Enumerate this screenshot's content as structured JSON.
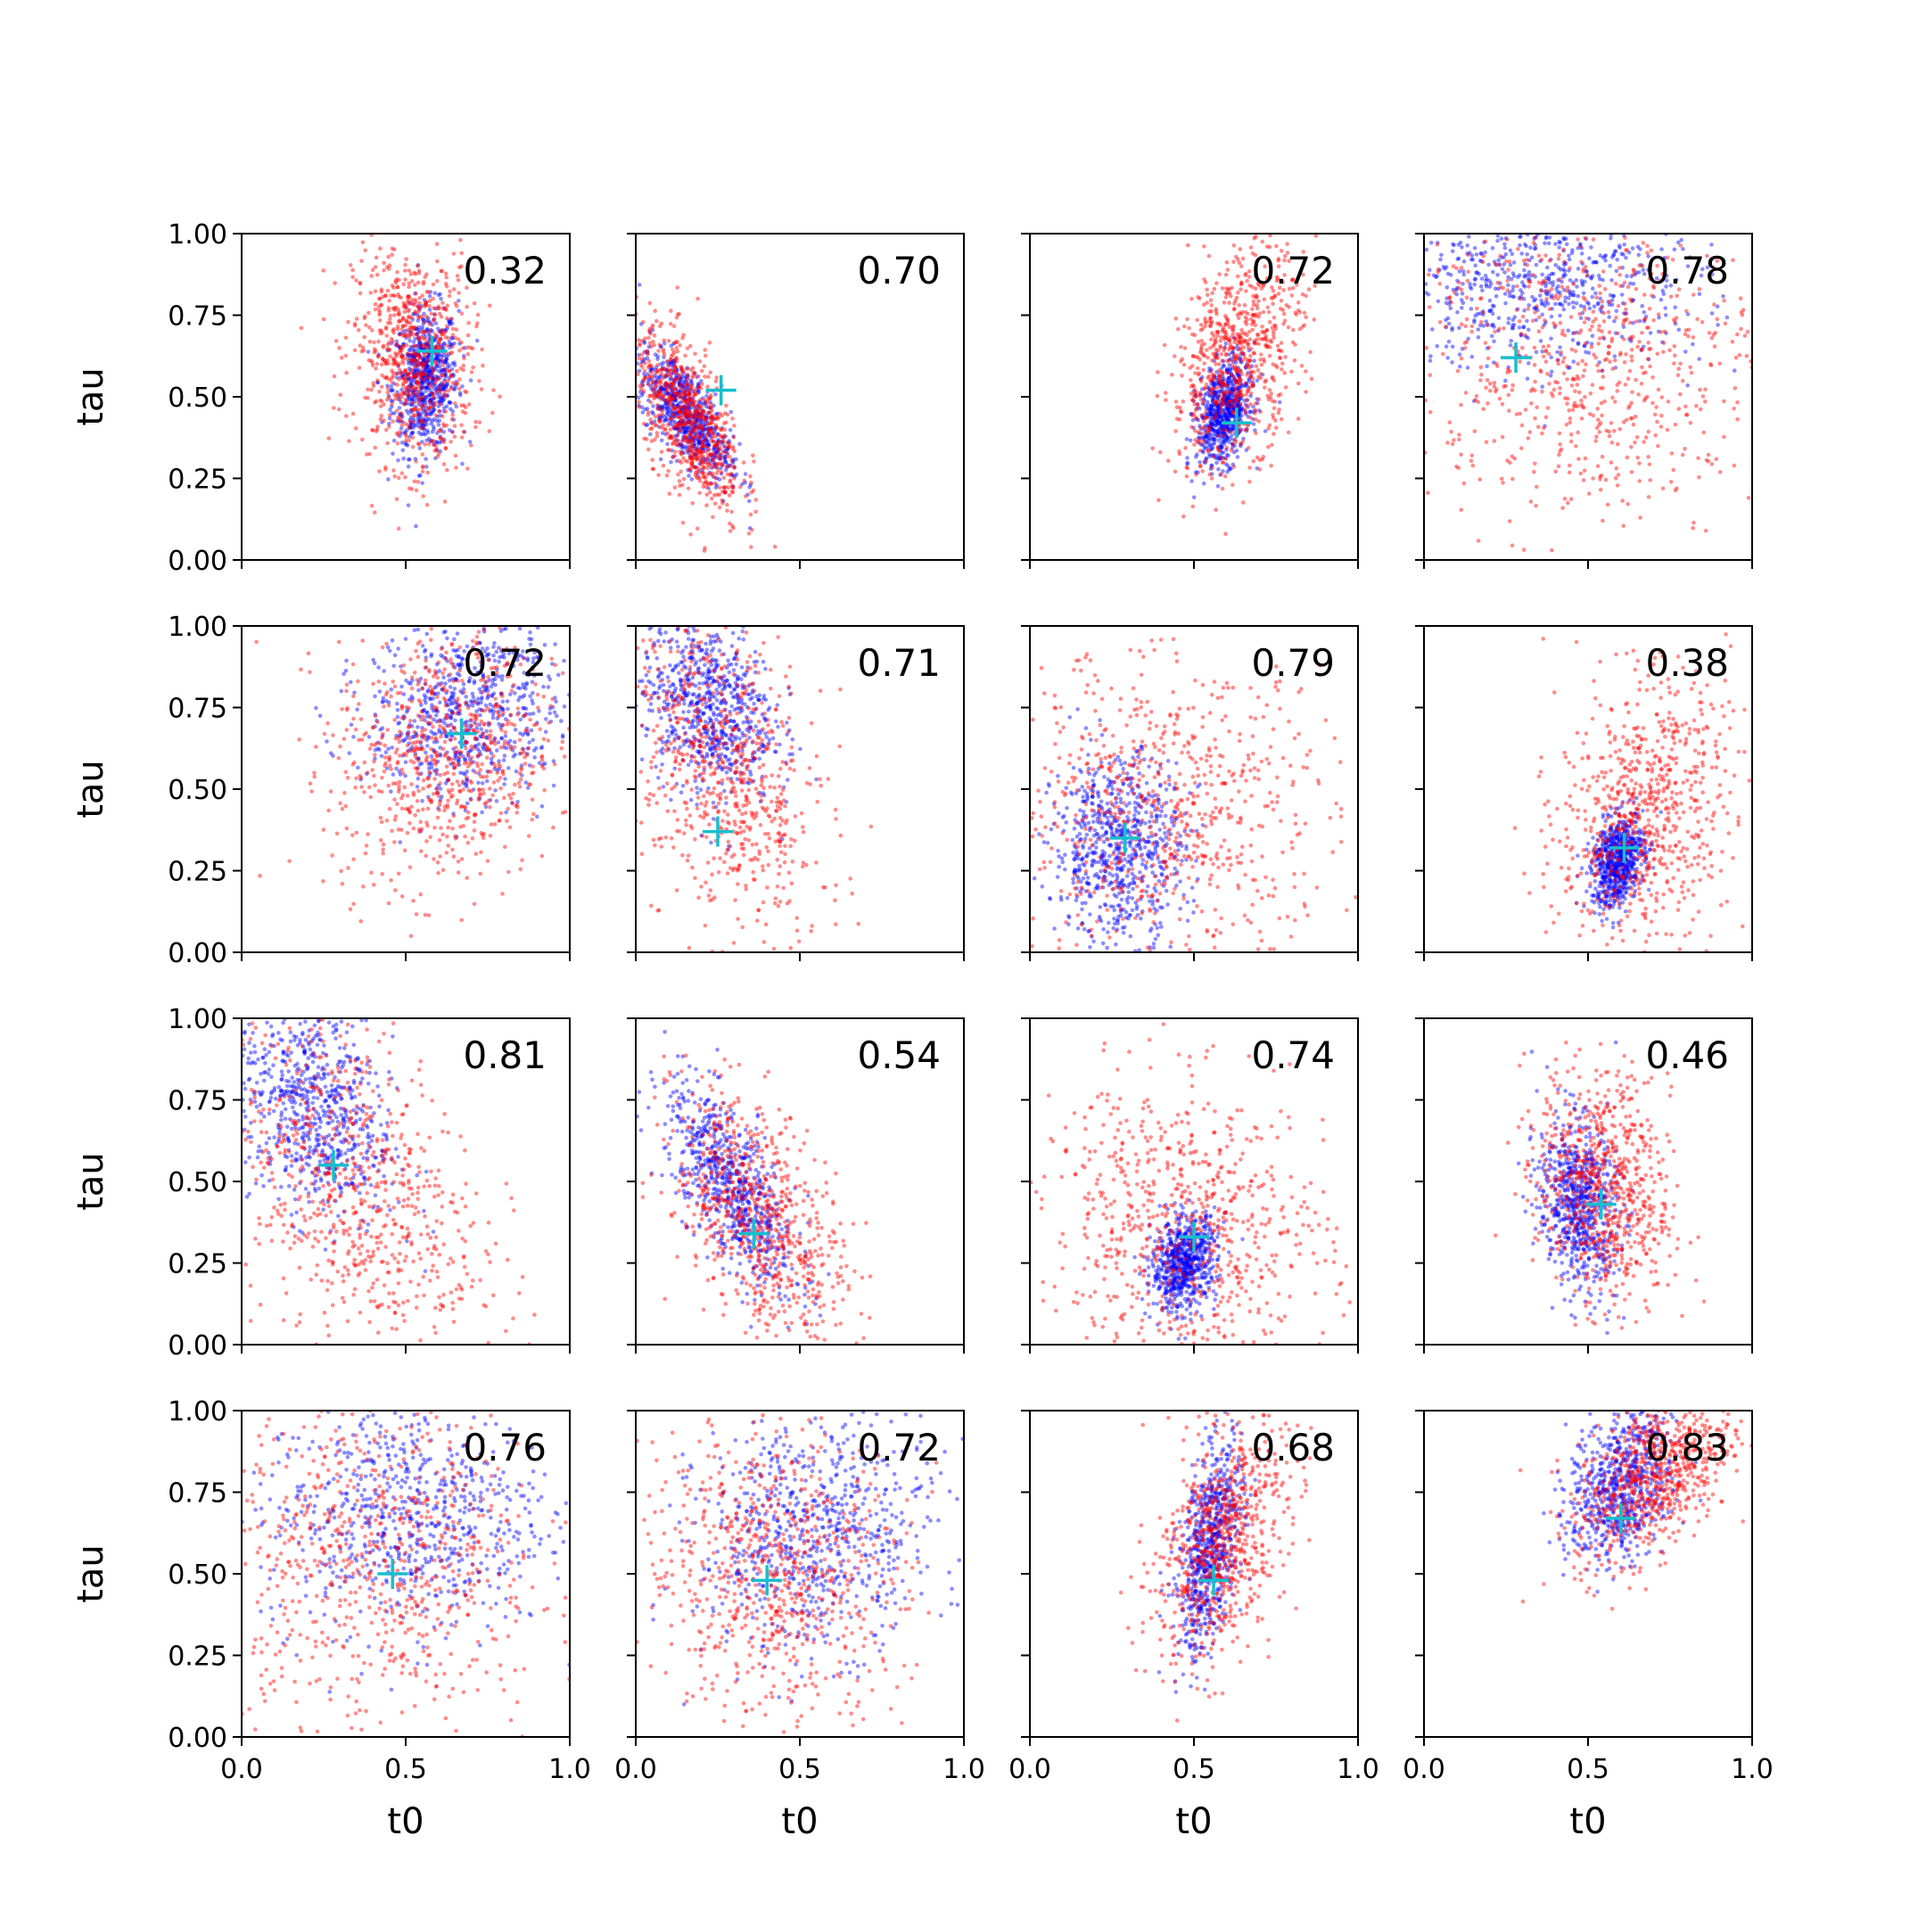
{
  "chart_data": {
    "type": "scatter",
    "layout": "4x4 grid of scatter panels",
    "xlabel": "t0",
    "ylabel": "tau",
    "xlim": [
      0,
      1
    ],
    "ylim": [
      0,
      1
    ],
    "xticks": [
      0.0,
      0.5,
      1.0
    ],
    "xtick_labels": [
      "0.0",
      "0.5",
      "1.0"
    ],
    "yticks": [
      0.0,
      0.25,
      0.5,
      0.75,
      1.0
    ],
    "ytick_labels": [
      "0.00",
      "0.25",
      "0.50",
      "0.75",
      "1.00"
    ],
    "series_colors": {
      "blue": "#0000ff",
      "red": "#ff0000",
      "marker": "#17becf"
    },
    "panels": [
      {
        "value_label": "0.32",
        "marker": [
          0.58,
          0.64
        ],
        "blue": {
          "mx": 0.56,
          "my": 0.55,
          "sx": 0.05,
          "sy": 0.11,
          "rho": 0.1
        },
        "red": {
          "mx": 0.52,
          "my": 0.62,
          "sx": 0.09,
          "sy": 0.17,
          "rho": -0.1
        }
      },
      {
        "value_label": "0.70",
        "marker": [
          0.26,
          0.52
        ],
        "blue": {
          "mx": 0.15,
          "my": 0.45,
          "sx": 0.07,
          "sy": 0.1,
          "rho": -0.7
        },
        "red": {
          "mx": 0.16,
          "my": 0.43,
          "sx": 0.08,
          "sy": 0.14,
          "rho": -0.6
        }
      },
      {
        "value_label": "0.72",
        "marker": [
          0.63,
          0.42
        ],
        "blue": {
          "mx": 0.59,
          "my": 0.45,
          "sx": 0.04,
          "sy": 0.08,
          "rho": 0.3
        },
        "red": {
          "mx": 0.63,
          "my": 0.62,
          "sx": 0.1,
          "sy": 0.17,
          "rho": 0.4
        }
      },
      {
        "value_label": "0.78",
        "marker": [
          0.28,
          0.62
        ],
        "blue": {
          "mx": 0.35,
          "my": 0.85,
          "sx": 0.25,
          "sy": 0.13,
          "rho": 0.0
        },
        "red": {
          "mx": 0.5,
          "my": 0.62,
          "sx": 0.28,
          "sy": 0.25,
          "rho": -0.1
        }
      },
      {
        "value_label": "0.72",
        "marker": [
          0.67,
          0.67
        ],
        "blue": {
          "mx": 0.68,
          "my": 0.74,
          "sx": 0.15,
          "sy": 0.14,
          "rho": 0.1
        },
        "red": {
          "mx": 0.62,
          "my": 0.6,
          "sx": 0.17,
          "sy": 0.2,
          "rho": 0.1
        }
      },
      {
        "value_label": "0.71",
        "marker": [
          0.25,
          0.37
        ],
        "blue": {
          "mx": 0.22,
          "my": 0.76,
          "sx": 0.1,
          "sy": 0.14,
          "rho": -0.2
        },
        "red": {
          "mx": 0.27,
          "my": 0.55,
          "sx": 0.15,
          "sy": 0.26,
          "rho": -0.4
        }
      },
      {
        "value_label": "0.79",
        "marker": [
          0.29,
          0.35
        ],
        "blue": {
          "mx": 0.27,
          "my": 0.32,
          "sx": 0.1,
          "sy": 0.14,
          "rho": 0.0
        },
        "red": {
          "mx": 0.42,
          "my": 0.42,
          "sx": 0.25,
          "sy": 0.24,
          "rho": -0.1
        }
      },
      {
        "value_label": "0.38",
        "marker": [
          0.61,
          0.32
        ],
        "blue": {
          "mx": 0.59,
          "my": 0.28,
          "sx": 0.04,
          "sy": 0.07,
          "rho": 0.3
        },
        "red": {
          "mx": 0.67,
          "my": 0.43,
          "sx": 0.13,
          "sy": 0.2,
          "rho": 0.2
        }
      },
      {
        "value_label": "0.81",
        "marker": [
          0.28,
          0.55
        ],
        "blue": {
          "mx": 0.22,
          "my": 0.72,
          "sx": 0.12,
          "sy": 0.17,
          "rho": -0.3
        },
        "red": {
          "mx": 0.33,
          "my": 0.5,
          "sx": 0.2,
          "sy": 0.27,
          "rho": -0.4
        }
      },
      {
        "value_label": "0.54",
        "marker": [
          0.36,
          0.34
        ],
        "blue": {
          "mx": 0.29,
          "my": 0.48,
          "sx": 0.1,
          "sy": 0.16,
          "rho": -0.7
        },
        "red": {
          "mx": 0.38,
          "my": 0.38,
          "sx": 0.13,
          "sy": 0.2,
          "rho": -0.5
        }
      },
      {
        "value_label": "0.74",
        "marker": [
          0.5,
          0.33
        ],
        "blue": {
          "mx": 0.47,
          "my": 0.25,
          "sx": 0.05,
          "sy": 0.07,
          "rho": 0.2
        },
        "red": {
          "mx": 0.47,
          "my": 0.36,
          "sx": 0.22,
          "sy": 0.22,
          "rho": -0.1
        }
      },
      {
        "value_label": "0.46",
        "marker": [
          0.54,
          0.43
        ],
        "blue": {
          "mx": 0.47,
          "my": 0.43,
          "sx": 0.06,
          "sy": 0.13,
          "rho": -0.2
        },
        "red": {
          "mx": 0.55,
          "my": 0.48,
          "sx": 0.1,
          "sy": 0.18,
          "rho": -0.2
        }
      },
      {
        "value_label": "0.76",
        "marker": [
          0.46,
          0.5
        ],
        "blue": {
          "mx": 0.5,
          "my": 0.68,
          "sx": 0.22,
          "sy": 0.18,
          "rho": 0.0
        },
        "red": {
          "mx": 0.42,
          "my": 0.55,
          "sx": 0.25,
          "sy": 0.27,
          "rho": 0.0
        }
      },
      {
        "value_label": "0.72",
        "marker": [
          0.4,
          0.48
        ],
        "blue": {
          "mx": 0.55,
          "my": 0.62,
          "sx": 0.18,
          "sy": 0.18,
          "rho": 0.1
        },
        "red": {
          "mx": 0.42,
          "my": 0.5,
          "sx": 0.2,
          "sy": 0.23,
          "rho": -0.1
        }
      },
      {
        "value_label": "0.68",
        "marker": [
          0.56,
          0.48
        ],
        "blue": {
          "mx": 0.55,
          "my": 0.58,
          "sx": 0.05,
          "sy": 0.16,
          "rho": 0.5
        },
        "red": {
          "mx": 0.58,
          "my": 0.6,
          "sx": 0.1,
          "sy": 0.18,
          "rho": 0.4
        }
      },
      {
        "value_label": "0.83",
        "marker": [
          0.6,
          0.67
        ],
        "blue": {
          "mx": 0.6,
          "my": 0.77,
          "sx": 0.08,
          "sy": 0.12,
          "rho": 0.3
        },
        "red": {
          "mx": 0.7,
          "my": 0.8,
          "sx": 0.12,
          "sy": 0.13,
          "rho": 0.5
        }
      }
    ]
  }
}
